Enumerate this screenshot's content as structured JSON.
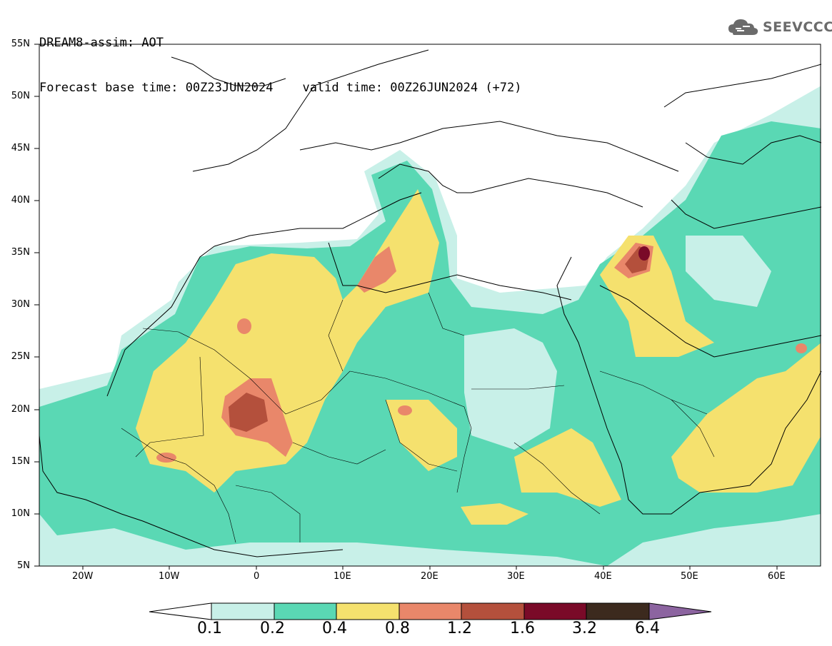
{
  "header": {
    "line1": "DREAM8-assim: AOT",
    "line2": "Forecast base time: 00Z23JUN2024    valid time: 00Z26JUN2024 (+72)"
  },
  "logo": {
    "text": "SEEVCCC",
    "icon": "cloud-icon"
  },
  "map": {
    "lat_labels": [
      "55N",
      "50N",
      "45N",
      "40N",
      "35N",
      "30N",
      "25N",
      "20N",
      "15N",
      "10N",
      "5N"
    ],
    "lon_labels": [
      "20W",
      "10W",
      "0",
      "10E",
      "20E",
      "30E",
      "40E",
      "50E",
      "60E"
    ]
  },
  "colorbar": {
    "levels": [
      "0.1",
      "0.2",
      "0.4",
      "0.8",
      "1.2",
      "1.6",
      "3.2",
      "6.4"
    ],
    "colors": [
      "#c8f0e8",
      "#5ad8b4",
      "#f5e16e",
      "#e9876a",
      "#b4503c",
      "#7a0a28",
      "#3c2a1e"
    ],
    "under_color": "#ffffff",
    "over_color": "#8c64a0"
  }
}
